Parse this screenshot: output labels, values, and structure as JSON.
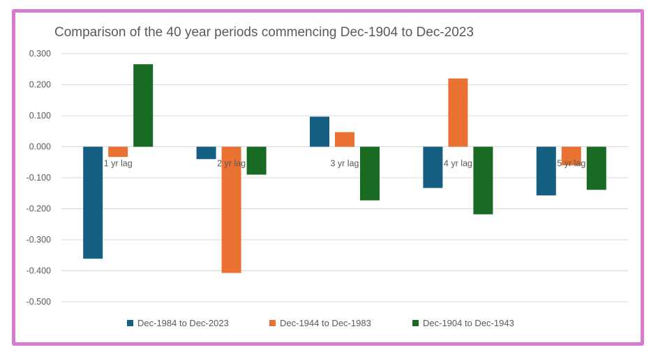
{
  "chart_data": {
    "type": "bar",
    "title": "Comparison of the 40 year periods commencing Dec-1904 to Dec-2023",
    "xlabel": "",
    "ylabel": "",
    "categories": [
      "1 yr lag",
      "2 yr lag",
      "3 yr lag",
      "4 yr lag",
      "5 yr lag"
    ],
    "series": [
      {
        "name": "Dec-1984 to Dec-2023",
        "color": "#156082",
        "values": [
          -0.361,
          -0.04,
          0.097,
          -0.133,
          -0.157
        ]
      },
      {
        "name": "Dec-1944 to Dec-1983",
        "color": "#e97132",
        "values": [
          -0.033,
          -0.407,
          0.047,
          0.22,
          -0.06
        ]
      },
      {
        "name": "Dec-1904 to Dec-1943",
        "color": "#196b24",
        "values": [
          0.266,
          -0.09,
          -0.173,
          -0.218,
          -0.139
        ]
      }
    ],
    "ylim": [
      -0.5,
      0.3
    ],
    "yticks": [
      "0.300",
      "0.200",
      "0.100",
      "0.000",
      "-0.100",
      "-0.200",
      "-0.300",
      "-0.400",
      "-0.500"
    ],
    "grid": true,
    "legend": "bottom",
    "frame_color": "#d77bd0"
  }
}
